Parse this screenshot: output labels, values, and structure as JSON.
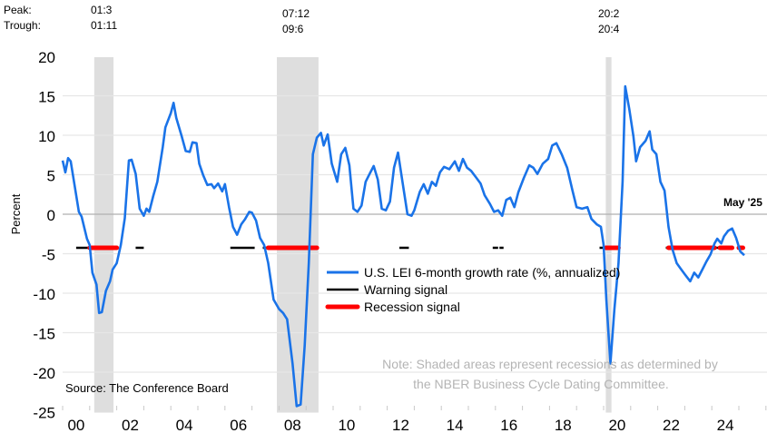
{
  "chart_data": {
    "type": "line",
    "title": "",
    "xlabel": "",
    "ylabel": "Percent",
    "ylim": [
      -25,
      20
    ],
    "yticks": [
      20,
      15,
      10,
      5,
      0,
      -5,
      -10,
      -15,
      -20,
      -25
    ],
    "xlim": [
      2000,
      2025.9
    ],
    "xtick_labels": [
      "00",
      "02",
      "04",
      "06",
      "08",
      "10",
      "12",
      "14",
      "16",
      "18",
      "20",
      "22",
      "24"
    ],
    "xtick_years": [
      2000,
      2002,
      2004,
      2006,
      2008,
      2010,
      2012,
      2014,
      2016,
      2018,
      2020,
      2022,
      2024
    ],
    "grid": true,
    "legend_position": "center-right",
    "peak_trough_header": {
      "peak": "Peak:",
      "trough": "Trough:"
    },
    "recessions": [
      {
        "peak": "01:3",
        "trough": "01:11",
        "start": 2001.17,
        "end": 2001.88
      },
      {
        "peak": "07:12",
        "trough": "09:6",
        "start": 2007.92,
        "end": 2009.46
      },
      {
        "peak": "20:2",
        "trough": "20:4",
        "start": 2020.08,
        "end": 2020.29
      }
    ],
    "series": [
      {
        "name": "U.S. LEI 6-month growth rate (%, annualized)",
        "color": "#1a73e8",
        "x": [
          2000.0,
          2000.1,
          2000.2,
          2000.3,
          2000.6,
          2000.7,
          2000.9,
          2001.0,
          2001.1,
          2001.25,
          2001.35,
          2001.45,
          2001.6,
          2001.75,
          2001.85,
          2002.0,
          2002.15,
          2002.3,
          2002.45,
          2002.55,
          2002.7,
          2002.85,
          2003.0,
          2003.1,
          2003.2,
          2003.35,
          2003.5,
          2003.7,
          2003.8,
          2004.0,
          2004.1,
          2004.2,
          2004.4,
          2004.55,
          2004.7,
          2004.8,
          2004.95,
          2005.05,
          2005.2,
          2005.35,
          2005.5,
          2005.6,
          2005.75,
          2005.9,
          2006.0,
          2006.15,
          2006.3,
          2006.45,
          2006.6,
          2006.75,
          2006.9,
          2007.0,
          2007.15,
          2007.3,
          2007.45,
          2007.6,
          2007.8,
          2008.0,
          2008.15,
          2008.3,
          2008.5,
          2008.65,
          2008.8,
          2008.95,
          2009.1,
          2009.25,
          2009.4,
          2009.55,
          2009.65,
          2009.8,
          2009.95,
          2010.15,
          2010.3,
          2010.45,
          2010.6,
          2010.75,
          2010.9,
          2011.05,
          2011.2,
          2011.35,
          2011.5,
          2011.65,
          2011.8,
          2011.95,
          2012.1,
          2012.25,
          2012.4,
          2012.55,
          2012.75,
          2012.9,
          2013.0,
          2013.2,
          2013.35,
          2013.5,
          2013.65,
          2013.8,
          2013.95,
          2014.1,
          2014.3,
          2014.5,
          2014.65,
          2014.8,
          2014.95,
          2015.1,
          2015.3,
          2015.45,
          2015.6,
          2015.8,
          2015.95,
          2016.1,
          2016.25,
          2016.4,
          2016.55,
          2016.7,
          2016.85,
          2017.05,
          2017.25,
          2017.4,
          2017.55,
          2017.75,
          2017.95,
          2018.1,
          2018.25,
          2018.45,
          2018.65,
          2018.85,
          2019.0,
          2019.2,
          2019.4,
          2019.55,
          2019.75,
          2019.9,
          2020.0,
          2020.1,
          2020.25,
          2020.4,
          2020.55,
          2020.7,
          2020.8,
          2020.95,
          2021.1,
          2021.2,
          2021.35,
          2021.55,
          2021.7,
          2021.8,
          2021.95,
          2022.1,
          2022.25,
          2022.4,
          2022.55,
          2022.7,
          2022.85,
          2023.0,
          2023.2,
          2023.35,
          2023.5,
          2023.65,
          2023.8,
          2023.95,
          2024.1,
          2024.2,
          2024.35,
          2024.45,
          2024.6,
          2024.75,
          2024.9,
          2025.05,
          2025.2
        ],
        "values": [
          6.8,
          5.3,
          7.1,
          6.7,
          0.3,
          -0.3,
          -3.1,
          -3.9,
          -7.4,
          -8.9,
          -12.5,
          -12.4,
          -9.7,
          -8.5,
          -7.0,
          -6.2,
          -3.9,
          -0.5,
          6.8,
          6.9,
          5.1,
          0.7,
          -0.2,
          0.7,
          0.3,
          2.3,
          4.1,
          8.5,
          11.0,
          12.8,
          14.1,
          12.2,
          9.9,
          8.0,
          7.9,
          9.1,
          9.0,
          6.4,
          4.9,
          3.7,
          3.8,
          3.3,
          3.9,
          2.9,
          3.8,
          0.9,
          -1.6,
          -2.6,
          -1.3,
          -0.6,
          0.3,
          0.2,
          -0.8,
          -3.0,
          -3.9,
          -6.2,
          -10.8,
          -12.0,
          -12.5,
          -13.3,
          -18.9,
          -24.3,
          -24.1,
          -16.6,
          -6.2,
          7.6,
          9.7,
          10.3,
          8.7,
          10.1,
          6.4,
          4.1,
          7.6,
          8.4,
          6.2,
          0.7,
          0.3,
          1.1,
          4.1,
          5.1,
          6.1,
          4.4,
          0.7,
          0.5,
          1.6,
          5.9,
          7.8,
          4.4,
          0.0,
          -0.2,
          0.5,
          2.8,
          3.8,
          2.6,
          4.1,
          3.6,
          5.3,
          6.0,
          5.7,
          6.7,
          5.5,
          7.0,
          5.9,
          5.5,
          4.6,
          3.9,
          2.4,
          1.3,
          0.3,
          0.5,
          -0.2,
          1.8,
          2.1,
          0.9,
          2.8,
          4.6,
          6.2,
          5.9,
          5.1,
          6.4,
          7.0,
          8.7,
          9.0,
          7.6,
          5.9,
          3.0,
          0.9,
          0.7,
          0.9,
          -0.6,
          -1.3,
          -1.6,
          -3.9,
          -10.8,
          -18.9,
          -12.0,
          -6.2,
          4.1,
          16.2,
          13.3,
          9.9,
          6.7,
          8.5,
          9.3,
          10.5,
          8.2,
          7.6,
          4.1,
          3.0,
          -1.6,
          -4.5,
          -6.2,
          -6.9,
          -7.6,
          -8.5,
          -7.4,
          -8.0,
          -7.0,
          -6.0,
          -5.1,
          -3.7,
          -3.1,
          -3.7,
          -2.8,
          -2.1,
          -1.8,
          -3.0,
          -4.7,
          -5.2
        ]
      },
      {
        "name": "Warning signal",
        "color": "#000000",
        "level": -4.25,
        "segments": [
          [
            2000.5,
            2001.17
          ],
          [
            2001.88,
            2002.0
          ],
          [
            2002.7,
            2003.0
          ],
          [
            2006.2,
            2007.1
          ],
          [
            2007.4,
            2007.6
          ],
          [
            2012.45,
            2012.8
          ],
          [
            2015.9,
            2016.1
          ],
          [
            2016.15,
            2016.3
          ],
          [
            2019.85,
            2020.08
          ],
          [
            2022.3,
            2022.4
          ],
          [
            2024.1,
            2024.3
          ]
        ]
      },
      {
        "name": "Recession signal",
        "color": "#ff0000",
        "level": -4.25,
        "segments": [
          [
            2001.0,
            2002.0
          ],
          [
            2007.6,
            2009.4
          ],
          [
            2020.08,
            2020.55
          ],
          [
            2022.4,
            2024.1
          ],
          [
            2024.3,
            2024.75
          ],
          [
            2025.0,
            2025.15
          ]
        ]
      }
    ],
    "annotations": {
      "latest": "May '25",
      "source": "Source: The Conference Board",
      "note_line1": "Note: Shaded areas represent recessions as determined by",
      "note_line2": "the NBER Business Cycle Dating Committee."
    }
  }
}
